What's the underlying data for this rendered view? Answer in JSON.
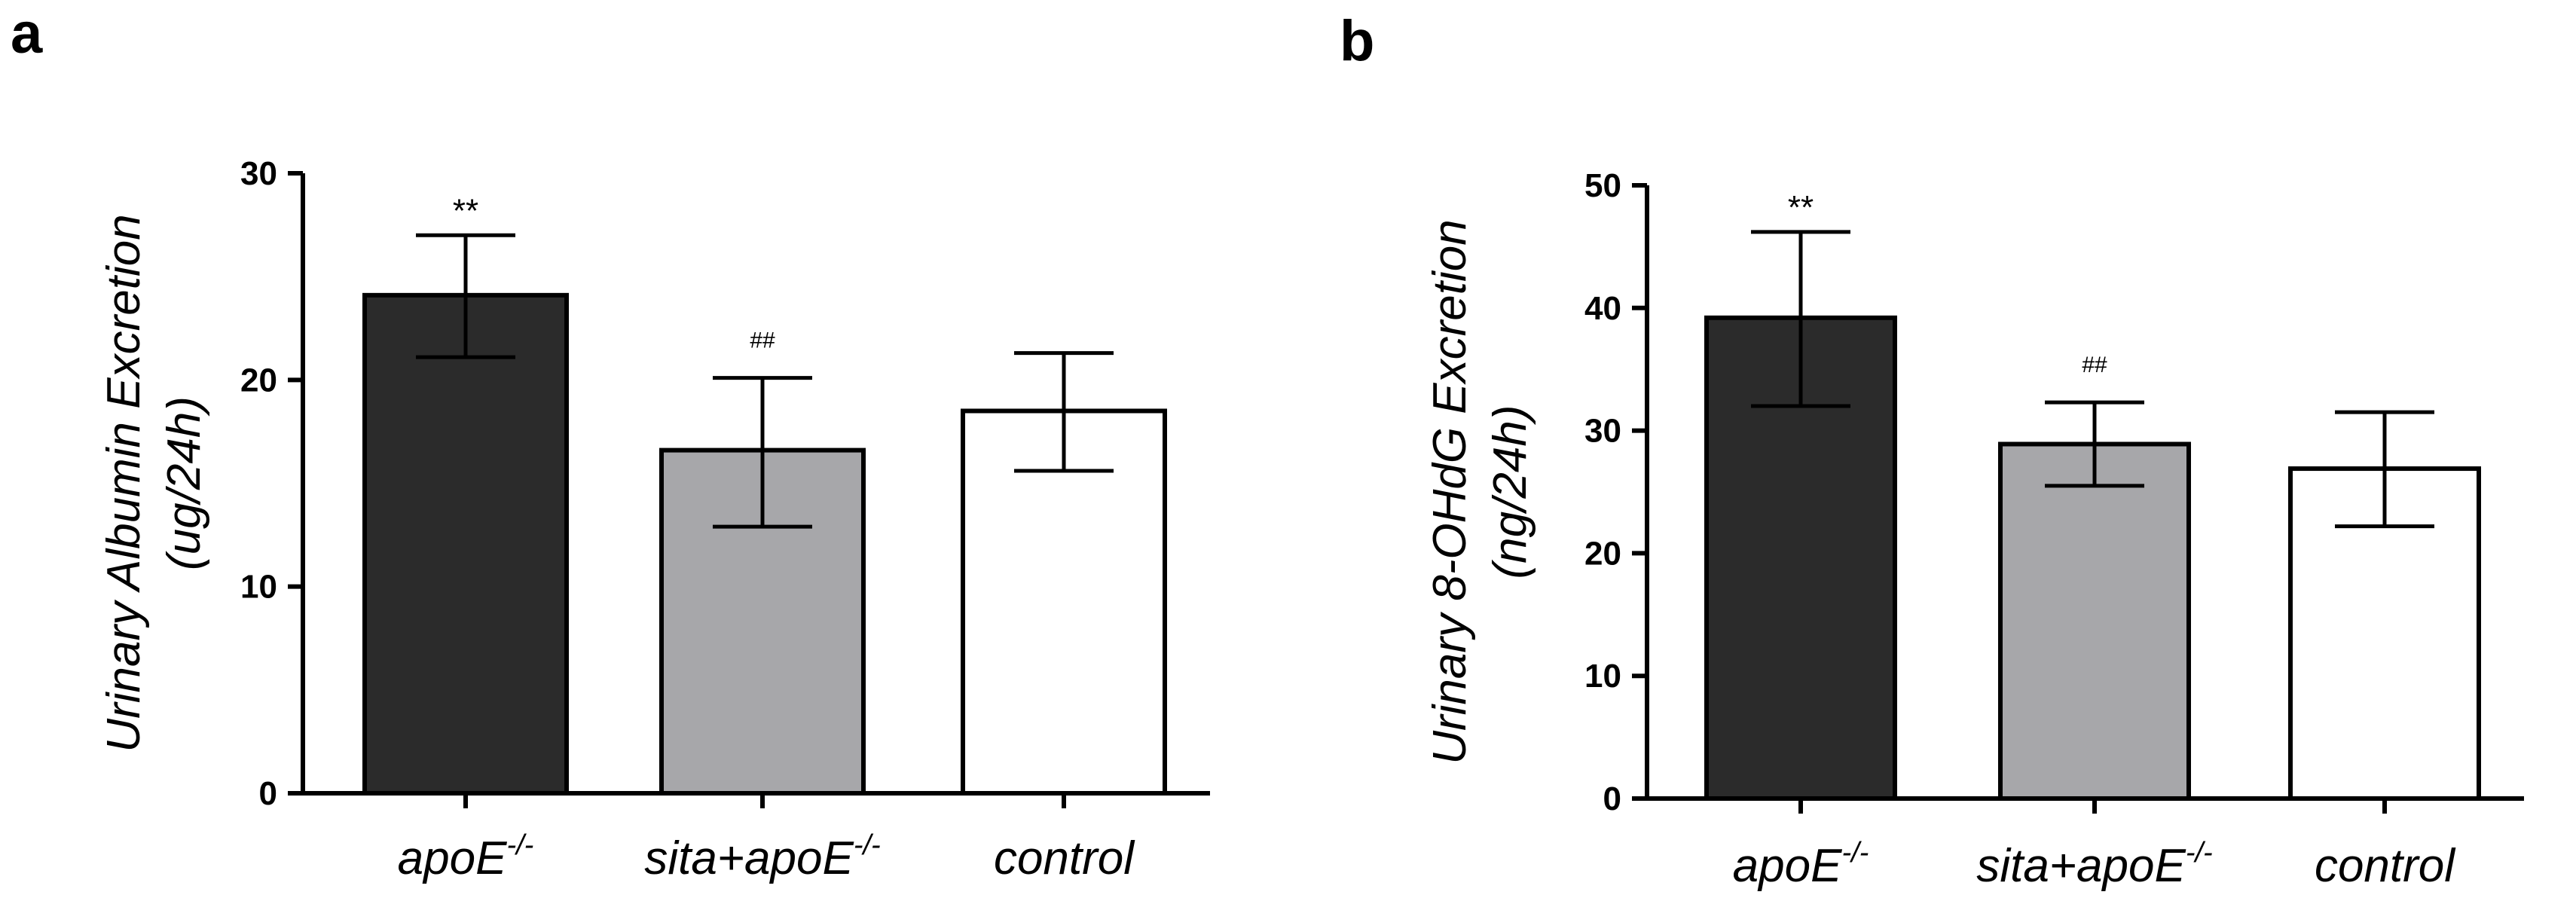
{
  "chart_data": [
    {
      "type": "bar",
      "panel_label": "a",
      "title": "",
      "ylabel_line1": "Urinary Albumin Excretion",
      "ylabel_line2": "(ug/24h)",
      "xlabel": "",
      "ylim": [
        0,
        30
      ],
      "yticks": [
        0,
        10,
        20,
        30
      ],
      "categories": [
        {
          "base": "apoE",
          "sup": "-/-"
        },
        {
          "base": "sita+apoE",
          "sup": "-/-"
        },
        {
          "base": "control",
          "sup": ""
        }
      ],
      "values": [
        24.1,
        16.6,
        18.5
      ],
      "error_lower": [
        21.1,
        12.9,
        15.6
      ],
      "error_upper": [
        27.0,
        20.1,
        21.3
      ],
      "annotations": [
        "**",
        "##",
        ""
      ],
      "colors": [
        "#2b2b2b",
        "#a7a7aa",
        "#ffffff"
      ]
    },
    {
      "type": "bar",
      "panel_label": "b",
      "title": "",
      "ylabel_line1": "Urinary 8-OHdG Excretion",
      "ylabel_line2": "(ng/24h)",
      "xlabel": "",
      "ylim": [
        0,
        50
      ],
      "yticks": [
        0,
        10,
        20,
        30,
        40,
        50
      ],
      "categories": [
        {
          "base": "apoE",
          "sup": "-/-"
        },
        {
          "base": "sita+apoE",
          "sup": "-/-"
        },
        {
          "base": "control",
          "sup": ""
        }
      ],
      "values": [
        39.2,
        28.9,
        26.9
      ],
      "error_lower": [
        32.0,
        25.5,
        22.2
      ],
      "error_upper": [
        46.2,
        32.3,
        31.5
      ],
      "annotations": [
        "**",
        "##",
        ""
      ],
      "colors": [
        "#2b2b2b",
        "#a7a7aa",
        "#ffffff"
      ]
    }
  ]
}
